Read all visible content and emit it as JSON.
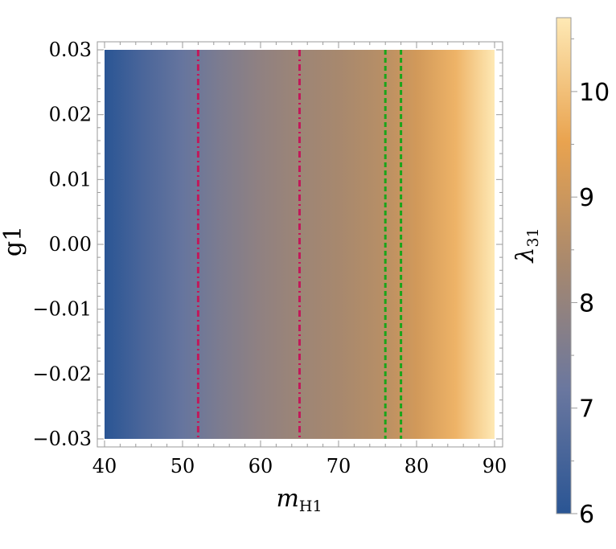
{
  "chart_data": {
    "type": "heatmap",
    "x": {
      "label_main": "m",
      "label_sub": "H1",
      "range": [
        40,
        90
      ],
      "ticks": [
        40,
        50,
        60,
        70,
        80,
        90
      ],
      "tick_labels": [
        "40",
        "50",
        "60",
        "70",
        "80",
        "90"
      ]
    },
    "y": {
      "label": "g1",
      "range": [
        -0.03,
        0.03
      ],
      "ticks": [
        -0.03,
        -0.02,
        -0.01,
        0.0,
        0.01,
        0.02,
        0.03
      ],
      "tick_labels": [
        "−0.03",
        "−0.02",
        "−0.01",
        "0.00",
        "0.01",
        "0.02",
        "0.03"
      ]
    },
    "colorbar": {
      "label_main": "λ",
      "label_sub": "31",
      "range": [
        6,
        10.7
      ],
      "ticks": [
        6,
        7,
        8,
        9,
        10
      ],
      "tick_labels": [
        "6",
        "7",
        "8",
        "9",
        "10"
      ],
      "colors": [
        "#2a5594",
        "#6a779f",
        "#a7886e",
        "#e9a34f",
        "#fee9b5"
      ]
    },
    "surface": {
      "depends_on": "x only",
      "x_values": [
        40,
        45,
        50,
        55,
        60,
        65,
        70,
        75,
        80,
        85,
        90
      ],
      "z_values": [
        6.0,
        6.6,
        7.1,
        7.55,
        7.9,
        8.15,
        8.35,
        8.6,
        9.1,
        9.8,
        10.7
      ]
    },
    "vertical_lines": [
      {
        "x": 52,
        "style": "dash-dot",
        "color": "#c2185b"
      },
      {
        "x": 65,
        "style": "dash-dot",
        "color": "#c2185b"
      },
      {
        "x": 76,
        "style": "dashed",
        "color": "#1aa51a"
      },
      {
        "x": 78,
        "style": "dashed",
        "color": "#1aa51a"
      }
    ]
  }
}
